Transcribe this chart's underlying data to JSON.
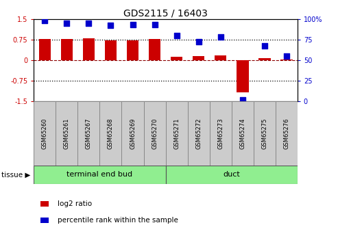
{
  "title": "GDS2115 / 16403",
  "samples": [
    "GSM65260",
    "GSM65261",
    "GSM65267",
    "GSM65268",
    "GSM65269",
    "GSM65270",
    "GSM65271",
    "GSM65272",
    "GSM65273",
    "GSM65274",
    "GSM65275",
    "GSM65276"
  ],
  "log2_ratio": [
    0.76,
    0.78,
    0.79,
    0.72,
    0.73,
    0.78,
    0.13,
    0.15,
    0.18,
    -1.18,
    0.08,
    0.02
  ],
  "percentile_rank": [
    98,
    95,
    95,
    92,
    93,
    93,
    80,
    72,
    78,
    2,
    67,
    55
  ],
  "bar_color": "#cc0000",
  "dot_color": "#0000cc",
  "ylim_left": [
    -1.5,
    1.5
  ],
  "ylim_right": [
    0,
    100
  ],
  "yticks_left": [
    -1.5,
    -0.75,
    0.0,
    0.75,
    1.5
  ],
  "ytick_labels_left": [
    "-1.5",
    "-0.75",
    "0",
    "0.75",
    "1.5"
  ],
  "yticks_right": [
    0,
    25,
    50,
    75,
    100
  ],
  "ytick_labels_right": [
    "0",
    "25",
    "50",
    "75",
    "100%"
  ],
  "hline_dotted_vals": [
    0.75,
    -0.75
  ],
  "hline_dashed_val": 0.0,
  "tissue_groups": [
    {
      "label": "terminal end bud",
      "start": 0,
      "end": 6,
      "color": "#90EE90"
    },
    {
      "label": "duct",
      "start": 6,
      "end": 12,
      "color": "#90EE90"
    }
  ],
  "tissue_label": "tissue ▶",
  "legend_items": [
    {
      "label": "log2 ratio",
      "color": "#cc0000"
    },
    {
      "label": "percentile rank within the sample",
      "color": "#0000cc"
    }
  ],
  "bar_width": 0.55,
  "dot_size": 28,
  "box_color": "#cccccc",
  "box_edge_color": "#888888",
  "background_color": "#ffffff"
}
